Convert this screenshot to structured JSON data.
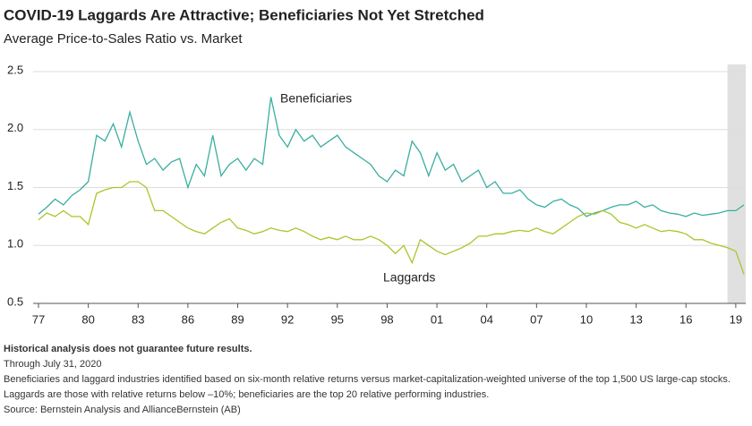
{
  "chart_data": {
    "type": "line",
    "title": "COVID-19 Laggards Are Attractive; Beneficiaries Not Yet Stretched",
    "subtitle": "Average Price-to-Sales Ratio vs. Market",
    "x": [
      1977,
      1977.5,
      1978,
      1978.5,
      1979,
      1979.5,
      1980,
      1980.5,
      1981,
      1981.5,
      1982,
      1982.5,
      1983,
      1983.5,
      1984,
      1984.5,
      1985,
      1985.5,
      1986,
      1986.5,
      1987,
      1987.5,
      1988,
      1988.5,
      1989,
      1989.5,
      1990,
      1990.5,
      1991,
      1991.5,
      1992,
      1992.5,
      1993,
      1993.5,
      1994,
      1994.5,
      1995,
      1995.5,
      1996,
      1996.5,
      1997,
      1997.5,
      1998,
      1998.5,
      1999,
      1999.5,
      2000,
      2000.5,
      2001,
      2001.5,
      2002,
      2002.5,
      2003,
      2003.5,
      2004,
      2004.5,
      2005,
      2005.5,
      2006,
      2006.5,
      2007,
      2007.5,
      2008,
      2008.5,
      2009,
      2009.5,
      2010,
      2010.5,
      2011,
      2011.5,
      2012,
      2012.5,
      2013,
      2013.5,
      2014,
      2014.5,
      2015,
      2015.5,
      2016,
      2016.5,
      2017,
      2017.5,
      2018,
      2018.5,
      2019,
      2019.5
    ],
    "series": [
      {
        "name": "Beneficiaries",
        "color": "#3aaea0",
        "values": [
          1.27,
          1.33,
          1.4,
          1.35,
          1.43,
          1.48,
          1.55,
          1.95,
          1.9,
          2.05,
          1.85,
          2.15,
          1.9,
          1.7,
          1.75,
          1.65,
          1.72,
          1.75,
          1.5,
          1.7,
          1.6,
          1.95,
          1.6,
          1.7,
          1.75,
          1.65,
          1.75,
          1.7,
          2.28,
          1.95,
          1.85,
          2.0,
          1.9,
          1.95,
          1.85,
          1.9,
          1.95,
          1.85,
          1.8,
          1.75,
          1.7,
          1.6,
          1.55,
          1.65,
          1.6,
          1.9,
          1.8,
          1.6,
          1.8,
          1.65,
          1.7,
          1.55,
          1.6,
          1.65,
          1.5,
          1.55,
          1.45,
          1.45,
          1.48,
          1.4,
          1.35,
          1.33,
          1.38,
          1.4,
          1.35,
          1.32,
          1.25,
          1.28,
          1.3,
          1.33,
          1.35,
          1.35,
          1.38,
          1.33,
          1.35,
          1.3,
          1.28,
          1.27,
          1.25,
          1.28,
          1.26,
          1.27,
          1.28,
          1.3,
          1.3,
          1.35
        ]
      },
      {
        "name": "Laggards",
        "color": "#a8c62a",
        "values": [
          1.22,
          1.28,
          1.25,
          1.3,
          1.25,
          1.25,
          1.18,
          1.45,
          1.48,
          1.5,
          1.5,
          1.55,
          1.55,
          1.5,
          1.3,
          1.3,
          1.25,
          1.2,
          1.15,
          1.12,
          1.1,
          1.15,
          1.2,
          1.23,
          1.15,
          1.13,
          1.1,
          1.12,
          1.15,
          1.13,
          1.12,
          1.15,
          1.12,
          1.08,
          1.05,
          1.07,
          1.05,
          1.08,
          1.05,
          1.05,
          1.08,
          1.05,
          1.0,
          0.93,
          1.0,
          0.85,
          1.05,
          1.0,
          0.95,
          0.92,
          0.95,
          0.98,
          1.02,
          1.08,
          1.08,
          1.1,
          1.1,
          1.12,
          1.13,
          1.12,
          1.15,
          1.12,
          1.1,
          1.15,
          1.2,
          1.25,
          1.28,
          1.27,
          1.3,
          1.27,
          1.2,
          1.18,
          1.15,
          1.18,
          1.15,
          1.12,
          1.13,
          1.12,
          1.1,
          1.05,
          1.05,
          1.02,
          1.0,
          0.98,
          0.95,
          0.75
        ]
      }
    ],
    "xlim": [
      1977,
      2019.6
    ],
    "xticks": [
      {
        "value": 1977,
        "label": "77"
      },
      {
        "value": 1980,
        "label": "80"
      },
      {
        "value": 1983,
        "label": "83"
      },
      {
        "value": 1986,
        "label": "86"
      },
      {
        "value": 1989,
        "label": "89"
      },
      {
        "value": 1992,
        "label": "92"
      },
      {
        "value": 1995,
        "label": "95"
      },
      {
        "value": 1998,
        "label": "98"
      },
      {
        "value": 2001,
        "label": "01"
      },
      {
        "value": 2004,
        "label": "04"
      },
      {
        "value": 2007,
        "label": "07"
      },
      {
        "value": 2010,
        "label": "10"
      },
      {
        "value": 2013,
        "label": "13"
      },
      {
        "value": 2016,
        "label": "16"
      },
      {
        "value": 2019,
        "label": "19"
      }
    ],
    "ylim": [
      0.5,
      2.5
    ],
    "yticks": [
      0.5,
      {
        "value": 1,
        "label": "1.0"
      },
      1.5,
      {
        "value": 2,
        "label": "2.0"
      },
      2.5
    ],
    "grid": true,
    "shaded_span": [
      2018.5,
      2019.6
    ],
    "notes": {
      "disclaimer": "Historical analysis does not guarantee future results.",
      "date": "Through July 31, 2020",
      "footnote": "Beneficiaries and laggard industries identified based on six-month relative returns versus market-capitalization-weighted universe of the top 1,500 US large-cap stocks. Laggards are those with relative returns below –10%; beneficiaries are the top 20 relative performing industries.",
      "source": "Source: Bernstein Analysis and AllianceBernstein (AB)"
    }
  }
}
